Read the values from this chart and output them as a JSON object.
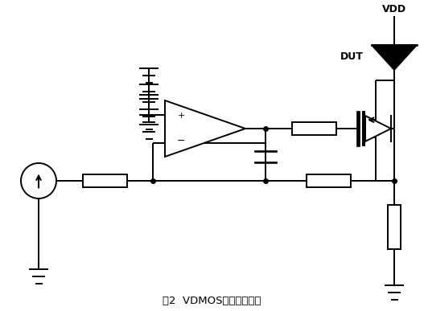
{
  "title": "图2  VDMOS电流驱动电路",
  "bg_color": "#ffffff",
  "line_color": "#000000",
  "lw": 1.4,
  "figsize": [
    5.27,
    3.87
  ],
  "dpi": 100,
  "vdd_label": "VDD",
  "dut_label": "DUT",
  "plus_label": "+",
  "minus_label": "−"
}
